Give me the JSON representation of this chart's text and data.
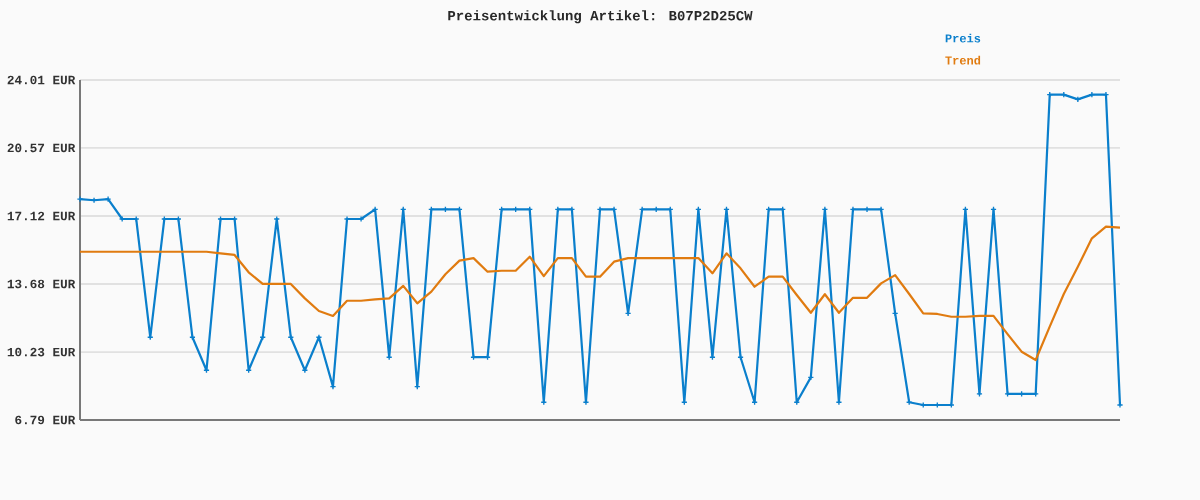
{
  "chart_data": {
    "type": "line",
    "title": "Preisentwicklung Artikel: B07P2D25CW",
    "categories": [
      null,
      null,
      null,
      null,
      null,
      null,
      null,
      null,
      null,
      null,
      null,
      null,
      null,
      null,
      null,
      null,
      null,
      null,
      null,
      null,
      null,
      null,
      null,
      null,
      null,
      null,
      null,
      null,
      null,
      null,
      null,
      null,
      null,
      null,
      null,
      null,
      null,
      null,
      null,
      null,
      null,
      null,
      null,
      null,
      null,
      null,
      null,
      null,
      null,
      null,
      null,
      null,
      null,
      null,
      null,
      null,
      null,
      null,
      null,
      null,
      null,
      null,
      null,
      null,
      null,
      null,
      null,
      null,
      null,
      null,
      null,
      null,
      null,
      null,
      null
    ],
    "series": [
      {
        "name": "Preis",
        "color": "#0a7fcc",
        "marker": "cross",
        "values": [
          17.98,
          17.92,
          17.98,
          16.97,
          16.97,
          10.98,
          16.97,
          16.97,
          10.98,
          9.31,
          16.97,
          16.97,
          9.31,
          10.98,
          16.97,
          10.98,
          9.31,
          10.98,
          8.48,
          16.97,
          16.97,
          17.46,
          9.97,
          17.46,
          8.48,
          17.46,
          17.46,
          17.46,
          9.97,
          9.97,
          17.46,
          17.46,
          17.46,
          7.69,
          17.46,
          17.46,
          7.69,
          17.46,
          17.46,
          12.19,
          17.46,
          17.46,
          17.46,
          7.69,
          17.46,
          9.97,
          17.46,
          9.97,
          7.69,
          17.46,
          17.46,
          7.69,
          8.95,
          17.46,
          7.69,
          17.46,
          17.46,
          17.46,
          12.19,
          7.69,
          7.55,
          7.55,
          7.55,
          17.46,
          8.11,
          17.46,
          8.11,
          8.11,
          8.11,
          23.27,
          23.27,
          23.03,
          23.27,
          23.27,
          7.55
        ]
      },
      {
        "name": "Trend",
        "color": "#e07b10",
        "marker": "none",
        "values": [
          15.31,
          15.31,
          15.31,
          15.31,
          15.31,
          15.31,
          15.31,
          15.31,
          15.31,
          15.31,
          15.23,
          15.15,
          14.27,
          13.68,
          13.68,
          13.68,
          12.95,
          12.31,
          12.06,
          12.83,
          12.83,
          12.9,
          12.95,
          13.58,
          12.7,
          13.29,
          14.17,
          14.86,
          14.99,
          14.3,
          14.35,
          14.35,
          15.06,
          14.08,
          14.99,
          14.99,
          14.05,
          14.05,
          14.81,
          14.99,
          14.99,
          14.99,
          14.99,
          14.99,
          14.99,
          14.22,
          15.23,
          14.47,
          13.54,
          14.05,
          14.05,
          13.12,
          12.22,
          13.16,
          12.22,
          12.98,
          12.98,
          13.71,
          14.13,
          13.17,
          12.19,
          12.16,
          12.02,
          12.02,
          12.06,
          12.06,
          11.14,
          10.25,
          9.83,
          11.52,
          13.17,
          14.55,
          15.99,
          16.58,
          16.53
        ]
      }
    ],
    "ylim": [
      6.79,
      24.01
    ],
    "yticks": [
      {
        "value": 6.79,
        "label": "6.79 EUR"
      },
      {
        "value": 10.23,
        "label": "10.23 EUR"
      },
      {
        "value": 13.68,
        "label": "13.68 EUR"
      },
      {
        "value": 17.12,
        "label": "17.12 EUR"
      },
      {
        "value": 20.57,
        "label": "20.57 EUR"
      },
      {
        "value": 24.01,
        "label": "24.01 EUR"
      }
    ],
    "grid": "y",
    "legend": "top right",
    "line_style": "solid"
  }
}
